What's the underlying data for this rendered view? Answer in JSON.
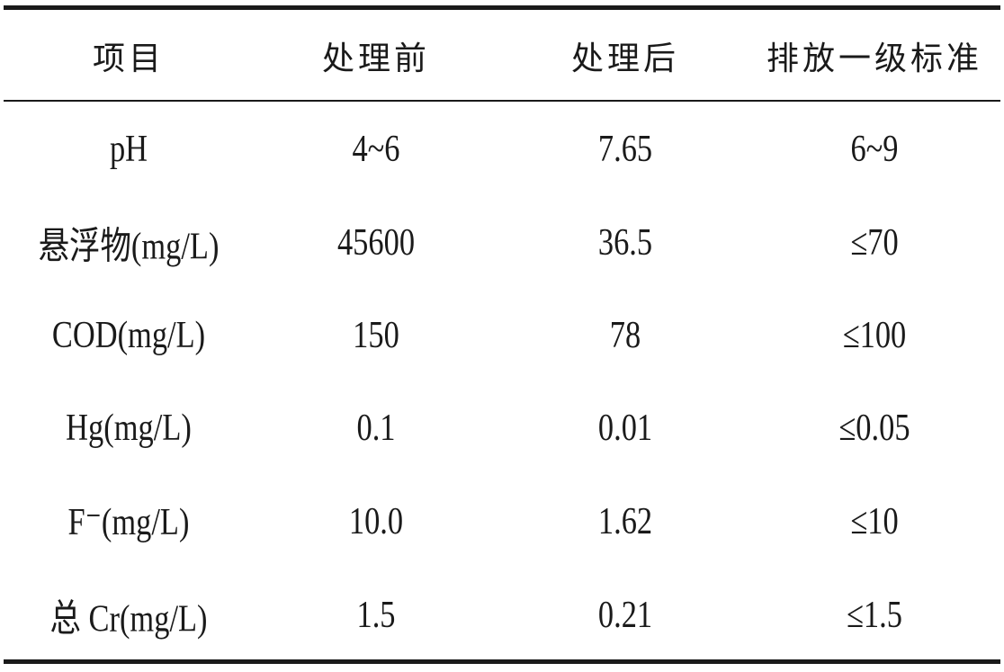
{
  "table": {
    "headers": [
      "项目",
      "处理前",
      "处理后",
      "排放一级标准"
    ],
    "rows": [
      [
        "pH",
        "4~6",
        "7.65",
        "6~9"
      ],
      [
        "悬浮物(mg/L)",
        "45600",
        "36.5",
        "≤70"
      ],
      [
        "COD(mg/L)",
        "150",
        "78",
        "≤100"
      ],
      [
        "Hg(mg/L)",
        "0.1",
        "0.01",
        "≤0.05"
      ],
      [
        "F⁻(mg/L)",
        "10.0",
        "1.62",
        "≤10"
      ],
      [
        "总 Cr(mg/L)",
        "1.5",
        "0.21",
        "≤1.5"
      ]
    ]
  }
}
